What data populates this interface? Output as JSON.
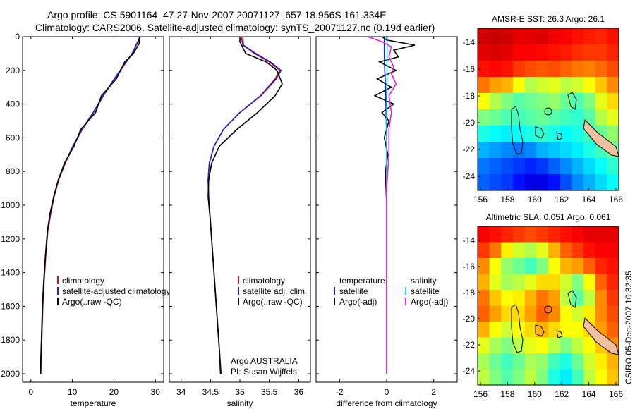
{
  "header": {
    "line1": "Argo profile: CS 5901164_47 27-Nov-2007 20071127_657 18.956S 161.334E",
    "line2": "Climatology: CARS2006. Satellite-adjusted climatology: synTS_20071127.nc (0.19d earlier)"
  },
  "credit": {
    "owner": "Argo AUSTRALIA",
    "pi": "PI: Susan Wijffels"
  },
  "footer_stamp": "CSIRO 05-Dec-2007 10:32:35",
  "colors": {
    "climatology": "#d01010",
    "satellite_adjusted": "#1f1fd0",
    "argo": "#000000",
    "satellite_diff_salinity": "#10e0f0",
    "argo_diff_salinity": "#f020e0"
  },
  "chart_data": [
    {
      "type": "line",
      "id": "temperature",
      "title": "",
      "xlabel": "temperature",
      "ylabel": "",
      "xlim": [
        -2,
        32
      ],
      "ylim": [
        2050,
        0
      ],
      "xticks": [
        0,
        10,
        20,
        30
      ],
      "yticks": [
        0,
        200,
        400,
        600,
        800,
        1000,
        1200,
        1400,
        1600,
        1800,
        2000
      ],
      "legend": [
        "climatology",
        "satellite-adjusted climatology",
        "Argo(..raw -QC)"
      ],
      "legend_position": "lower-center",
      "series": [
        {
          "name": "climatology",
          "x": [
            26.4,
            26.0,
            24.5,
            23.0,
            20.2,
            17.5,
            15.1,
            12.4,
            10.2,
            8.3,
            6.7,
            5.6,
            4.8,
            4.1,
            3.6,
            3.2,
            2.9,
            2.7,
            2.5,
            2.4
          ],
          "y": [
            0,
            20,
            100,
            150,
            250,
            350,
            450,
            550,
            650,
            750,
            850,
            950,
            1050,
            1150,
            1300,
            1450,
            1600,
            1750,
            1900,
            2000
          ]
        },
        {
          "name": "satellite-adjusted climatology",
          "x": [
            26.3,
            25.9,
            24.4,
            22.9,
            20.1,
            17.4,
            15.0,
            12.3,
            10.1,
            8.2,
            6.6,
            5.5,
            4.7,
            4.0,
            3.5,
            3.1,
            2.8,
            2.6,
            2.45,
            2.35
          ],
          "y": [
            0,
            20,
            100,
            150,
            250,
            350,
            450,
            550,
            650,
            750,
            850,
            950,
            1050,
            1150,
            1300,
            1450,
            1600,
            1750,
            1900,
            2000
          ]
        },
        {
          "name": "Argo(..raw -QC)",
          "x": [
            26.1,
            26.1,
            24.7,
            22.6,
            20.6,
            17.0,
            15.6,
            12.0,
            10.4,
            8.1,
            6.6,
            5.5,
            4.6,
            4.0,
            3.5,
            3.1,
            2.8,
            2.6,
            2.4,
            2.3
          ],
          "y": [
            5,
            40,
            100,
            150,
            250,
            350,
            450,
            550,
            650,
            750,
            850,
            950,
            1050,
            1150,
            1300,
            1450,
            1600,
            1750,
            1900,
            2000
          ]
        }
      ]
    },
    {
      "type": "line",
      "id": "salinity",
      "title": "",
      "xlabel": "salinity",
      "ylabel": "",
      "xlim": [
        33.8,
        36.2
      ],
      "ylim": [
        2050,
        0
      ],
      "xticks": [
        34,
        34.5,
        35,
        35.5,
        36
      ],
      "yticks": [
        0,
        200,
        400,
        600,
        800,
        1000,
        1200,
        1400,
        1600,
        1800,
        2000
      ],
      "legend": [
        "climatology",
        "satellite adj. clim.",
        "Argo(..raw -QC)"
      ],
      "legend_position": "lower-right",
      "series": [
        {
          "name": "climatology",
          "x": [
            35.02,
            35.05,
            35.25,
            35.5,
            35.68,
            35.6,
            35.35,
            35.0,
            34.72,
            34.56,
            34.48,
            34.46,
            34.47,
            34.5,
            34.53,
            34.56,
            34.59,
            34.62,
            34.65,
            34.68
          ],
          "y": [
            0,
            50,
            100,
            150,
            200,
            250,
            350,
            450,
            550,
            650,
            750,
            850,
            950,
            1100,
            1250,
            1400,
            1550,
            1700,
            1850,
            2000
          ]
        },
        {
          "name": "satellite adj. clim.",
          "x": [
            35.05,
            35.06,
            35.27,
            35.52,
            35.7,
            35.62,
            35.36,
            35.0,
            34.72,
            34.56,
            34.48,
            34.46,
            34.47,
            34.5,
            34.53,
            34.56,
            34.59,
            34.62,
            34.65,
            34.68
          ],
          "y": [
            0,
            50,
            100,
            150,
            200,
            250,
            350,
            450,
            550,
            650,
            750,
            850,
            950,
            1100,
            1250,
            1400,
            1550,
            1700,
            1850,
            2000
          ]
        },
        {
          "name": "Argo(..raw -QC)",
          "x": [
            35.0,
            35.0,
            35.1,
            35.45,
            35.63,
            35.72,
            35.6,
            35.3,
            34.95,
            34.65,
            34.52,
            34.47,
            34.46,
            34.5,
            34.53,
            34.56,
            34.59,
            34.62,
            34.65,
            34.67
          ],
          "y": [
            5,
            30,
            100,
            150,
            200,
            280,
            350,
            450,
            550,
            650,
            750,
            850,
            950,
            1100,
            1250,
            1400,
            1550,
            1700,
            1850,
            2000
          ]
        }
      ]
    },
    {
      "type": "line",
      "id": "difference",
      "title": "",
      "xlabel": "difference from climatology",
      "ylabel": "",
      "xlim": [
        -3.0,
        3.0
      ],
      "ylim": [
        2050,
        0
      ],
      "xticks": [
        -2,
        0,
        2
      ],
      "yticks": [
        0,
        200,
        400,
        600,
        800,
        1000,
        1200,
        1400,
        1600,
        1800,
        2000
      ],
      "legend": [
        "temperature",
        "satellite",
        "Argo(-adj)",
        "salinity",
        "satellite",
        "Argo(-adj)"
      ],
      "legend_position": "lower-center",
      "series": [
        {
          "name": "temperature satellite",
          "x": [
            -0.1,
            -0.1,
            -0.08,
            -0.05,
            -0.03,
            0,
            0,
            0,
            0,
            0
          ],
          "y": [
            0,
            100,
            200,
            300,
            400,
            600,
            800,
            1200,
            1600,
            2000
          ]
        },
        {
          "name": "temperature Argo(-adj)",
          "x": [
            -0.2,
            0.0,
            0.4,
            1.2,
            0.3,
            0.5,
            -0.3,
            0.4,
            -0.4,
            0.2,
            -0.5,
            0.3,
            -0.2,
            0.1,
            -0.1,
            0.05,
            -0.05,
            0.0,
            0.0,
            0.0,
            0.0
          ],
          "y": [
            0,
            20,
            30,
            50,
            80,
            120,
            150,
            200,
            250,
            300,
            350,
            400,
            450,
            500,
            600,
            700,
            800,
            1000,
            1400,
            1800,
            2000
          ]
        },
        {
          "name": "salinity satellite",
          "x": [
            0.02,
            0.02,
            0.01,
            0.0,
            0.0,
            0.0,
            0.0
          ],
          "y": [
            0,
            100,
            300,
            600,
            1000,
            1500,
            2000
          ]
        },
        {
          "name": "salinity Argo(-adj)",
          "x": [
            -0.8,
            -0.2,
            0.2,
            0.1,
            0.3,
            0.2,
            0.4,
            0.1,
            0.2,
            0.1,
            0.1,
            0.0,
            0.0,
            0.0
          ],
          "y": [
            0,
            30,
            60,
            120,
            180,
            220,
            280,
            350,
            450,
            550,
            700,
            900,
            1300,
            2000
          ]
        }
      ]
    }
  ],
  "maps": [
    {
      "id": "sst-map",
      "title": "AMSR-E SST: 26.3  Argo: 26.1",
      "xticks": [
        "156",
        "158",
        "160",
        "162",
        "164",
        "166"
      ],
      "yticks": [
        "-14",
        "-16",
        "-18",
        "-20",
        "-22",
        "-24"
      ],
      "field": [
        [
          0.92,
          0.93,
          0.92,
          0.9,
          0.9,
          0.91,
          0.89,
          0.88,
          0.86,
          0.85,
          0.84,
          0.86
        ],
        [
          0.9,
          0.91,
          0.9,
          0.88,
          0.88,
          0.87,
          0.86,
          0.85,
          0.83,
          0.82,
          0.82,
          0.84
        ],
        [
          0.86,
          0.87,
          0.86,
          0.82,
          0.8,
          0.79,
          0.8,
          0.78,
          0.76,
          0.75,
          0.77,
          0.8
        ],
        [
          0.76,
          0.72,
          0.7,
          0.62,
          0.55,
          0.58,
          0.6,
          0.56,
          0.58,
          0.62,
          0.68,
          0.74
        ],
        [
          0.62,
          0.55,
          0.5,
          0.46,
          0.48,
          0.5,
          0.52,
          0.48,
          0.45,
          0.5,
          0.6,
          0.66
        ],
        [
          0.5,
          0.48,
          0.45,
          0.44,
          0.46,
          0.48,
          0.46,
          0.44,
          0.42,
          0.46,
          0.55,
          0.6
        ],
        [
          0.4,
          0.38,
          0.36,
          0.38,
          0.4,
          0.42,
          0.4,
          0.38,
          0.4,
          0.44,
          0.48,
          0.52
        ],
        [
          0.3,
          0.28,
          0.26,
          0.24,
          0.26,
          0.3,
          0.32,
          0.34,
          0.36,
          0.4,
          0.44,
          0.48
        ],
        [
          0.24,
          0.22,
          0.2,
          0.18,
          0.16,
          0.18,
          0.22,
          0.26,
          0.3,
          0.34,
          0.38,
          0.42
        ],
        [
          0.22,
          0.2,
          0.18,
          0.14,
          0.1,
          0.1,
          0.14,
          0.2,
          0.26,
          0.3,
          0.34,
          0.38
        ]
      ]
    },
    {
      "id": "sla-map",
      "title": "Altimetric SLA: 0.051  Argo: 0.061",
      "xticks": [
        "156",
        "158",
        "160",
        "162",
        "164",
        "166"
      ],
      "yticks": [
        "-14",
        "-16",
        "-18",
        "-20",
        "-22",
        "-24"
      ],
      "field": [
        [
          0.88,
          0.86,
          0.84,
          0.82,
          0.8,
          0.82,
          0.84,
          0.86,
          0.88,
          0.9,
          0.9,
          0.9
        ],
        [
          0.82,
          0.76,
          0.64,
          0.58,
          0.55,
          0.6,
          0.7,
          0.78,
          0.82,
          0.86,
          0.88,
          0.88
        ],
        [
          0.74,
          0.62,
          0.52,
          0.48,
          0.44,
          0.5,
          0.62,
          0.7,
          0.72,
          0.78,
          0.84,
          0.86
        ],
        [
          0.7,
          0.6,
          0.54,
          0.56,
          0.6,
          0.66,
          0.66,
          0.58,
          0.5,
          0.62,
          0.78,
          0.84
        ],
        [
          0.76,
          0.68,
          0.62,
          0.64,
          0.7,
          0.76,
          0.72,
          0.56,
          0.46,
          0.56,
          0.74,
          0.82
        ],
        [
          0.78,
          0.72,
          0.66,
          0.66,
          0.72,
          0.78,
          0.74,
          0.62,
          0.58,
          0.64,
          0.74,
          0.8
        ],
        [
          0.7,
          0.62,
          0.58,
          0.62,
          0.66,
          0.7,
          0.66,
          0.62,
          0.62,
          0.66,
          0.72,
          0.78
        ],
        [
          0.6,
          0.54,
          0.5,
          0.56,
          0.6,
          0.62,
          0.56,
          0.5,
          0.56,
          0.62,
          0.68,
          0.74
        ],
        [
          0.54,
          0.48,
          0.44,
          0.48,
          0.54,
          0.52,
          0.44,
          0.4,
          0.48,
          0.58,
          0.64,
          0.7
        ],
        [
          0.56,
          0.5,
          0.46,
          0.5,
          0.56,
          0.5,
          0.4,
          0.36,
          0.44,
          0.56,
          0.62,
          0.68
        ]
      ]
    }
  ]
}
